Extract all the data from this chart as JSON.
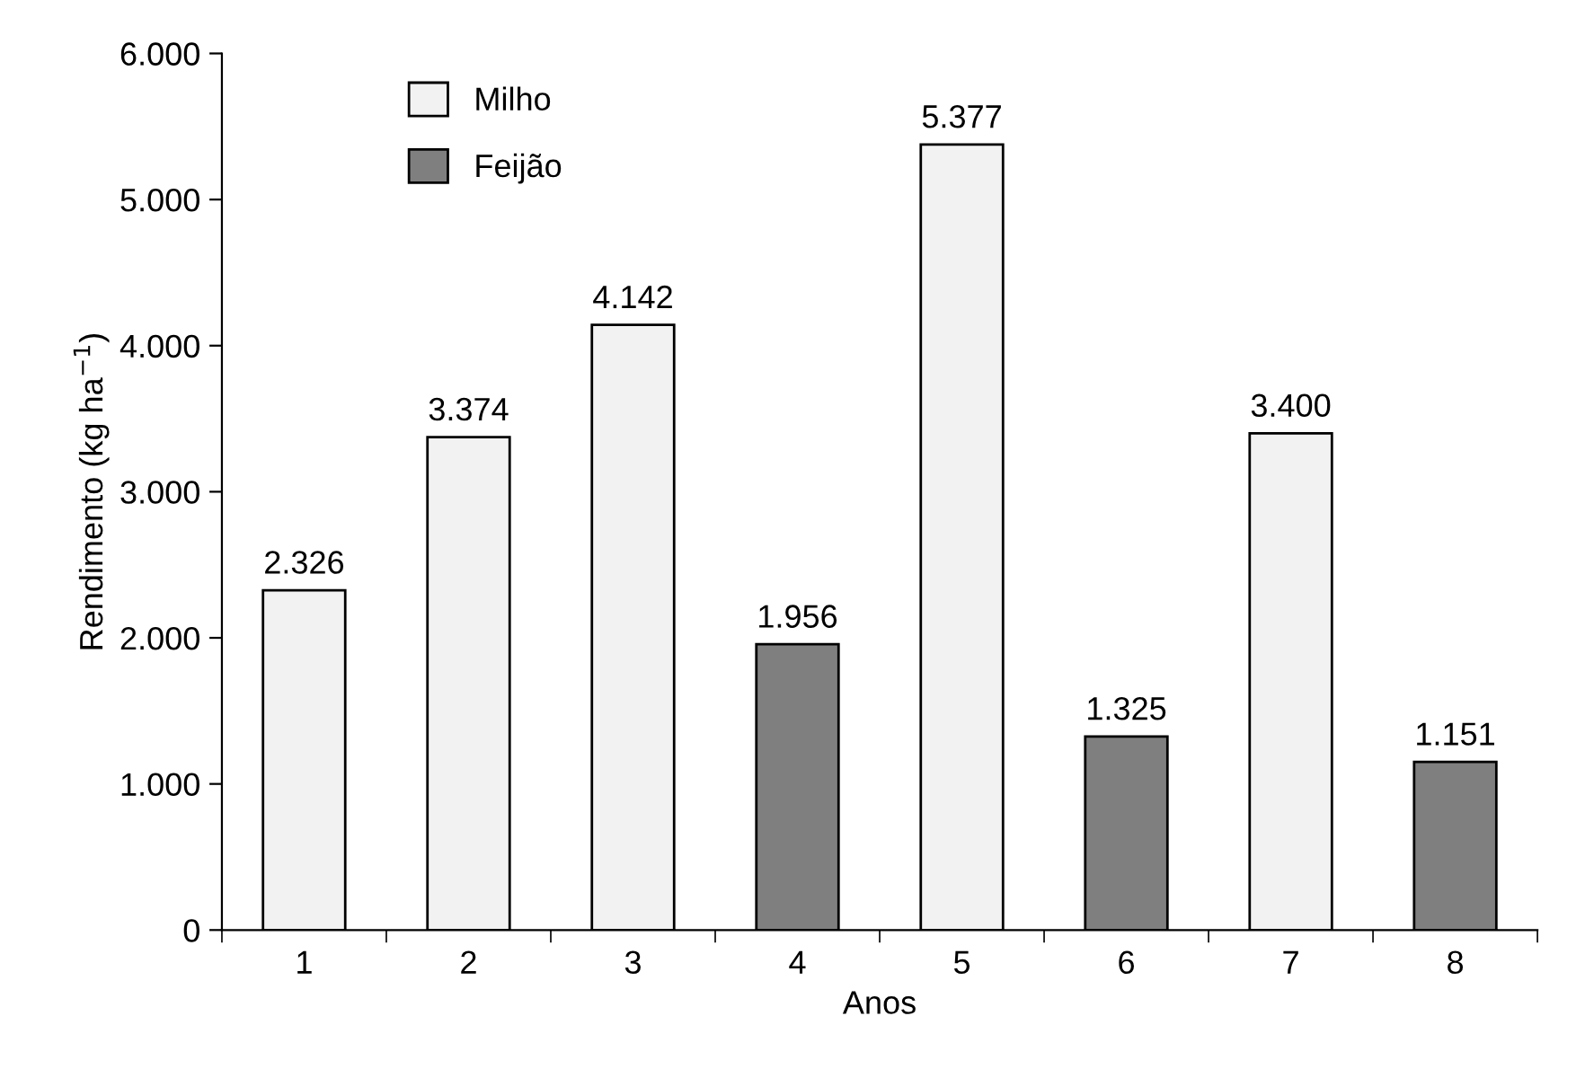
{
  "chart_data": {
    "type": "bar",
    "xlabel": "Anos",
    "ylabel": "Rendimento (kg ha$^{−1}$)",
    "categories": [
      "1",
      "2",
      "3",
      "4",
      "5",
      "6",
      "7",
      "8"
    ],
    "series": [
      {
        "name": "Milho",
        "color": "#f2f2f2",
        "values": [
          2326,
          3374,
          4142,
          null,
          5377,
          null,
          3400,
          null
        ],
        "value_labels": [
          "2.326",
          "3.374",
          "4.142",
          null,
          "5.377",
          null,
          "3.400",
          null
        ]
      },
      {
        "name": "Feijão",
        "color": "#7f7f7f",
        "values": [
          null,
          null,
          null,
          1956,
          null,
          1325,
          null,
          1151
        ],
        "value_labels": [
          null,
          null,
          null,
          "1.956",
          null,
          "1.325",
          null,
          "1.151"
        ]
      }
    ],
    "ylim": [
      0,
      6000
    ],
    "yticks": [
      0,
      {
        "value": 1000,
        "label": "1.000"
      },
      {
        "value": 2000,
        "label": "2.000"
      },
      {
        "value": 3000,
        "label": "3.000"
      },
      {
        "value": 4000,
        "label": "4.000"
      },
      {
        "value": 5000,
        "label": "5.000"
      },
      {
        "value": 6000,
        "label": "6.000"
      }
    ],
    "grid": false,
    "legend": "top left"
  }
}
